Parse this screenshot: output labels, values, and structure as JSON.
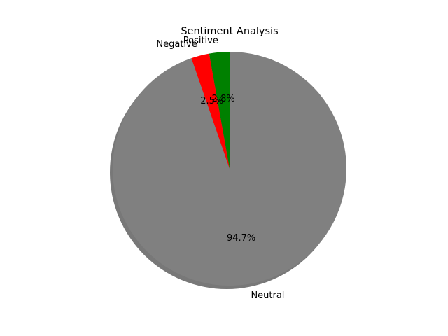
{
  "chart_data": {
    "type": "pie",
    "title": "Sentiment Analysis",
    "slices": [
      {
        "label": "Positive",
        "value": 2.8,
        "pct_label": "2.8%",
        "color": "#008000"
      },
      {
        "label": "Negative",
        "value": 2.5,
        "pct_label": "2.5%",
        "color": "#ff0000"
      },
      {
        "label": "Neutral",
        "value": 94.7,
        "pct_label": "94.7%",
        "color": "#808080"
      }
    ],
    "shadow": true,
    "start_angle_deg": 90,
    "direction": "counterclockwise",
    "shadow_color": "#606060"
  }
}
